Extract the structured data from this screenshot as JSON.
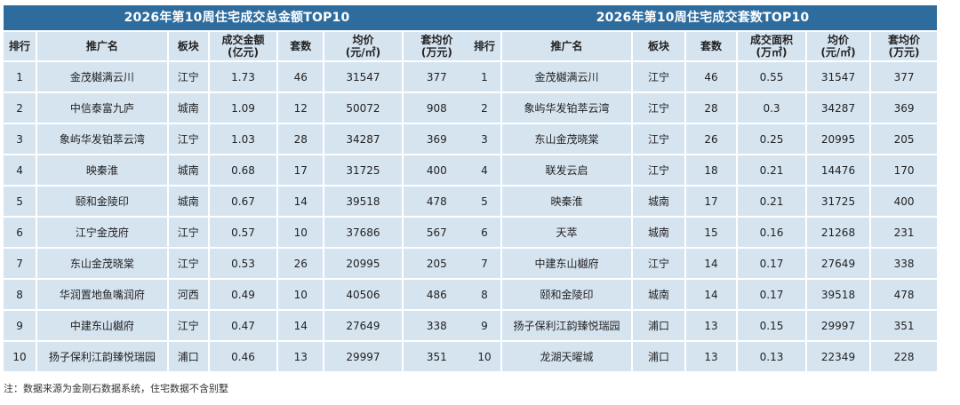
{
  "left_table": {
    "title": "2026年第10周住宅成交总金额TOP10",
    "headers": [
      "排行",
      "推广名",
      "板块",
      "成交金额\n(亿元)",
      "套数",
      "均价\n(元/㎡)",
      "套均价\n(万元)"
    ],
    "rows": [
      [
        "1",
        "金茂樾满云川",
        "江宁",
        "1.73",
        "46",
        "31547",
        "377"
      ],
      [
        "2",
        "中信泰富九庐",
        "城南",
        "1.09",
        "12",
        "50072",
        "908"
      ],
      [
        "3",
        "象屿华发铂萃云湾",
        "江宁",
        "1.03",
        "28",
        "34287",
        "369"
      ],
      [
        "4",
        "映秦淮",
        "城南",
        "0.68",
        "17",
        "31725",
        "400"
      ],
      [
        "5",
        "颐和金陵印",
        "城南",
        "0.67",
        "14",
        "39518",
        "478"
      ],
      [
        "6",
        "江宁金茂府",
        "江宁",
        "0.57",
        "10",
        "37686",
        "567"
      ],
      [
        "7",
        "东山金茂晓棠",
        "江宁",
        "0.53",
        "26",
        "20995",
        "205"
      ],
      [
        "8",
        "华润置地鱼嘴润府",
        "河西",
        "0.49",
        "10",
        "40506",
        "486"
      ],
      [
        "9",
        "中建东山樾府",
        "江宁",
        "0.47",
        "14",
        "27649",
        "338"
      ],
      [
        "10",
        "扬子保利江韵臻悦瑞园",
        "浦口",
        "0.46",
        "13",
        "29997",
        "351"
      ]
    ]
  },
  "right_table": {
    "title": "2026年第10周住宅成交套数TOP10",
    "headers": [
      "排行",
      "推广名",
      "板块",
      "套数",
      "成交面积\n(万㎡)",
      "均价\n(元/㎡)",
      "套均价\n(万元)"
    ],
    "rows": [
      [
        "1",
        "金茂樾满云川",
        "江宁",
        "46",
        "0.55",
        "31547",
        "377"
      ],
      [
        "2",
        "象屿华发铂萃云湾",
        "江宁",
        "28",
        "0.3",
        "34287",
        "369"
      ],
      [
        "3",
        "东山金茂晓棠",
        "江宁",
        "26",
        "0.25",
        "20995",
        "205"
      ],
      [
        "4",
        "联发云启",
        "江宁",
        "18",
        "0.21",
        "14476",
        "170"
      ],
      [
        "5",
        "映秦淮",
        "城南",
        "17",
        "0.21",
        "31725",
        "400"
      ],
      [
        "6",
        "天萃",
        "城南",
        "15",
        "0.16",
        "21268",
        "231"
      ],
      [
        "7",
        "中建东山樾府",
        "江宁",
        "14",
        "0.17",
        "27649",
        "338"
      ],
      [
        "8",
        "颐和金陵印",
        "城南",
        "14",
        "0.17",
        "39518",
        "478"
      ],
      [
        "9",
        "扬子保利江韵臻悦瑞园",
        "浦口",
        "13",
        "0.15",
        "29997",
        "351"
      ],
      [
        "10",
        "龙湖天曜城",
        "浦口",
        "13",
        "0.13",
        "22349",
        "228"
      ]
    ]
  },
  "footnote": "注：数据来源为金刚石数据系统，住宅数据不含别墅"
}
